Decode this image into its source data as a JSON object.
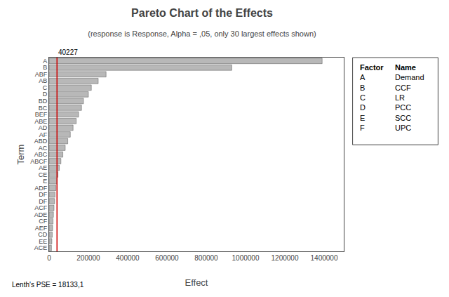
{
  "chart_data": {
    "type": "bar",
    "orientation": "horizontal",
    "title": "Pareto Chart of the Effects",
    "subtitle": "(response is Response, Alpha = ,05, only 30 largest effects shown)",
    "xlabel": "Effect",
    "ylabel": "Term",
    "categories": [
      "A",
      "B",
      "ABF",
      "AB",
      "C",
      "D",
      "BD",
      "BC",
      "BEF",
      "ABE",
      "AD",
      "AF",
      "ABD",
      "AC",
      "ABC",
      "ABCF",
      "AE",
      "CE",
      "E",
      "ADF",
      "DF",
      "DF",
      "ACF",
      "ADE",
      "CF",
      "AEF",
      "CD",
      "EE",
      "ACE"
    ],
    "values": [
      1390000,
      930000,
      290000,
      250000,
      215000,
      200000,
      175000,
      165000,
      150000,
      138000,
      122000,
      108000,
      95000,
      82000,
      70000,
      60000,
      52000,
      45000,
      40000,
      35000,
      30000,
      28000,
      25000,
      22000,
      20000,
      18000,
      16000,
      14000,
      12000
    ],
    "color": "#b8b8b8",
    "xlim": [
      0,
      1500000
    ],
    "xticks": [
      0,
      200000,
      400000,
      600000,
      800000,
      1000000,
      1200000,
      1400000
    ],
    "grid": false,
    "reference_line": {
      "value": 40227,
      "label": "40227",
      "color": "#cc0000"
    },
    "annotations": [
      "Lenth's PSE = 18133,1"
    ],
    "factor_table": {
      "headers": [
        "Factor",
        "Name"
      ],
      "rows": [
        [
          "A",
          "Demand"
        ],
        [
          "B",
          "CCF"
        ],
        [
          "C",
          "LR"
        ],
        [
          "D",
          "PCC"
        ],
        [
          "E",
          "SCC"
        ],
        [
          "F",
          "UPC"
        ]
      ]
    }
  }
}
